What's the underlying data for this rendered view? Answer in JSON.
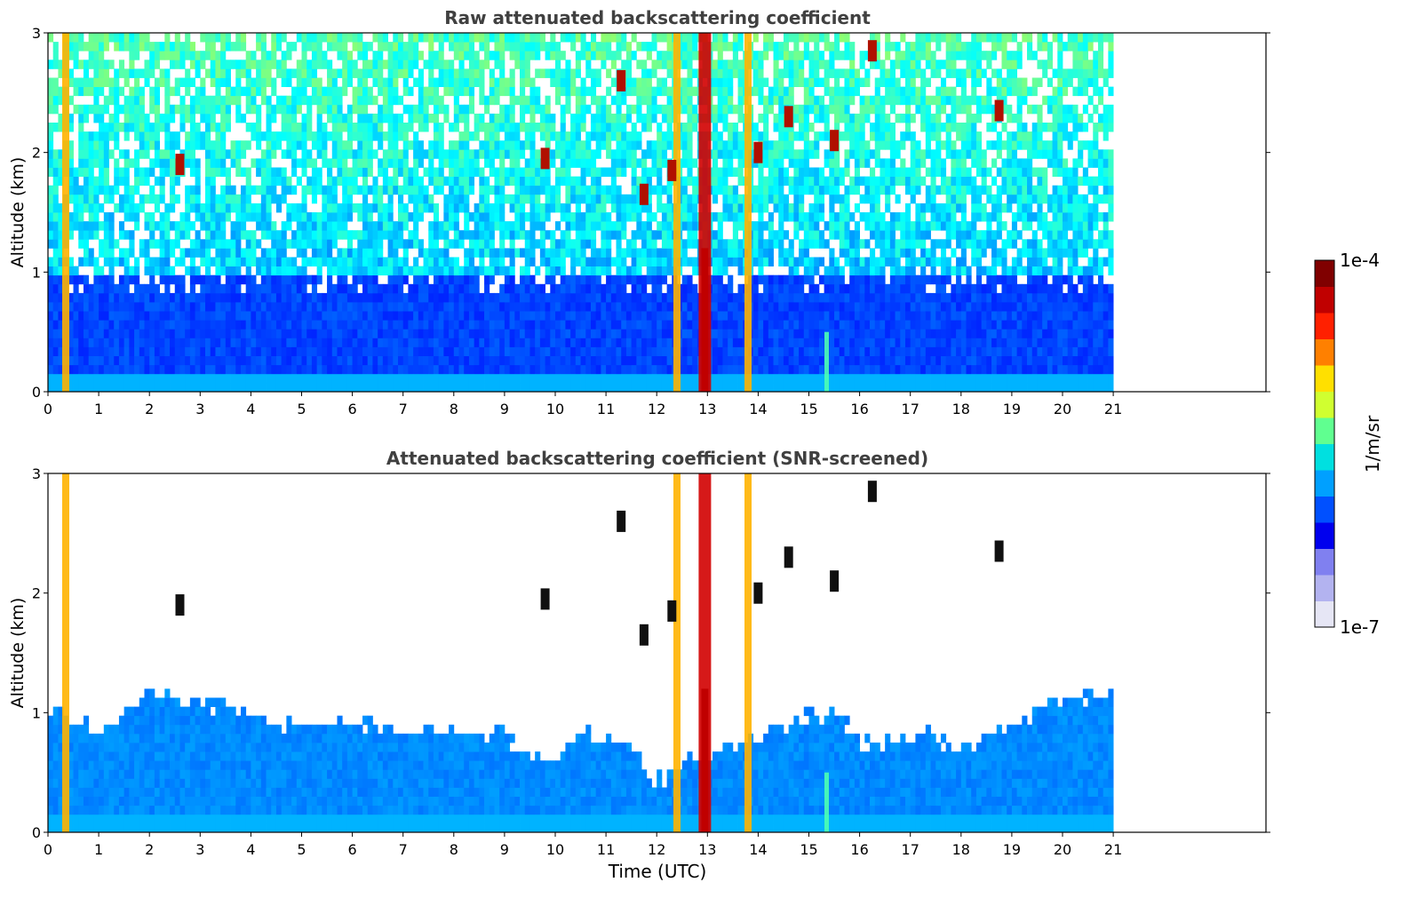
{
  "chart_data": [
    {
      "type": "heatmap",
      "title": "Raw attenuated backscattering coefficient",
      "xlabel": "",
      "ylabel": "Altitude (km)",
      "xlim": [
        0,
        24
      ],
      "ylim": [
        0,
        3
      ],
      "x_ticks": [
        "0",
        "1",
        "2",
        "3",
        "4",
        "5",
        "6",
        "7",
        "8",
        "9",
        "10",
        "11",
        "12",
        "13",
        "14",
        "15",
        "16",
        "17",
        "18",
        "19",
        "20",
        "21"
      ],
      "y_ticks": [
        "0",
        "1",
        "2",
        "3"
      ],
      "data_extent_hours": [
        0,
        21
      ],
      "screened": false,
      "value_scale": "log",
      "vertical_features": [
        {
          "time": 0.35,
          "altitude_top": 3.0,
          "intensity": "high"
        },
        {
          "time": 12.4,
          "altitude_top": 3.0,
          "intensity": "high"
        },
        {
          "time": 12.95,
          "altitude_top": 3.0,
          "intensity": "very high"
        },
        {
          "time": 13.8,
          "altitude_top": 3.0,
          "intensity": "high"
        },
        {
          "time": 15.35,
          "altitude_top": 0.5,
          "intensity": "medium"
        }
      ],
      "cloud_patches": [
        {
          "time": 2.6,
          "altitude": 1.9
        },
        {
          "time": 9.8,
          "altitude": 1.95
        },
        {
          "time": 11.3,
          "altitude": 2.6
        },
        {
          "time": 11.75,
          "altitude": 1.65
        },
        {
          "time": 12.3,
          "altitude": 1.85
        },
        {
          "time": 14.0,
          "altitude": 2.0
        },
        {
          "time": 14.6,
          "altitude": 2.3
        },
        {
          "time": 15.5,
          "altitude": 2.1
        },
        {
          "time": 16.25,
          "altitude": 2.85
        },
        {
          "time": 18.75,
          "altitude": 2.35
        }
      ]
    },
    {
      "type": "heatmap",
      "title": "Attenuated backscattering coefficient (SNR-screened)",
      "xlabel": "Time (UTC)",
      "ylabel": "Altitude (km)",
      "xlim": [
        0,
        24
      ],
      "ylim": [
        0,
        3
      ],
      "x_ticks": [
        "0",
        "1",
        "2",
        "3",
        "4",
        "5",
        "6",
        "7",
        "8",
        "9",
        "10",
        "11",
        "12",
        "13",
        "14",
        "15",
        "16",
        "17",
        "18",
        "19",
        "20",
        "21"
      ],
      "y_ticks": [
        "0",
        "1",
        "2",
        "3"
      ],
      "data_extent_hours": [
        0,
        21
      ],
      "screened": true,
      "value_scale": "log",
      "boundary_layer_top_km": [
        {
          "time": 0.0,
          "top": 1.05
        },
        {
          "time": 1.0,
          "top": 0.85
        },
        {
          "time": 2.0,
          "top": 1.2
        },
        {
          "time": 3.0,
          "top": 1.1
        },
        {
          "time": 4.0,
          "top": 1.0
        },
        {
          "time": 5.0,
          "top": 0.9
        },
        {
          "time": 6.0,
          "top": 0.92
        },
        {
          "time": 7.0,
          "top": 0.82
        },
        {
          "time": 8.0,
          "top": 0.85
        },
        {
          "time": 9.0,
          "top": 0.82
        },
        {
          "time": 9.8,
          "top": 0.6
        },
        {
          "time": 10.5,
          "top": 0.8
        },
        {
          "time": 11.5,
          "top": 0.75
        },
        {
          "time": 12.0,
          "top": 0.4
        },
        {
          "time": 12.5,
          "top": 0.6
        },
        {
          "time": 13.5,
          "top": 0.7
        },
        {
          "time": 14.5,
          "top": 0.9
        },
        {
          "time": 15.5,
          "top": 1.0
        },
        {
          "time": 16.2,
          "top": 0.7
        },
        {
          "time": 17.0,
          "top": 0.85
        },
        {
          "time": 18.0,
          "top": 0.7
        },
        {
          "time": 19.0,
          "top": 0.9
        },
        {
          "time": 20.0,
          "top": 1.1
        },
        {
          "time": 21.0,
          "top": 1.2
        }
      ]
    }
  ],
  "colorbar": {
    "label": "1/m/sr",
    "max_label": "1e-4",
    "min_label": "1e-7",
    "colormap": "jet",
    "colors": [
      "#e6e6f5",
      "#b3b3f0",
      "#8080f0",
      "#0000ee",
      "#0050ff",
      "#00a0ff",
      "#00e0e0",
      "#60ff90",
      "#d0ff30",
      "#ffe000",
      "#ff8000",
      "#ff2000",
      "#c00000",
      "#800000"
    ]
  }
}
